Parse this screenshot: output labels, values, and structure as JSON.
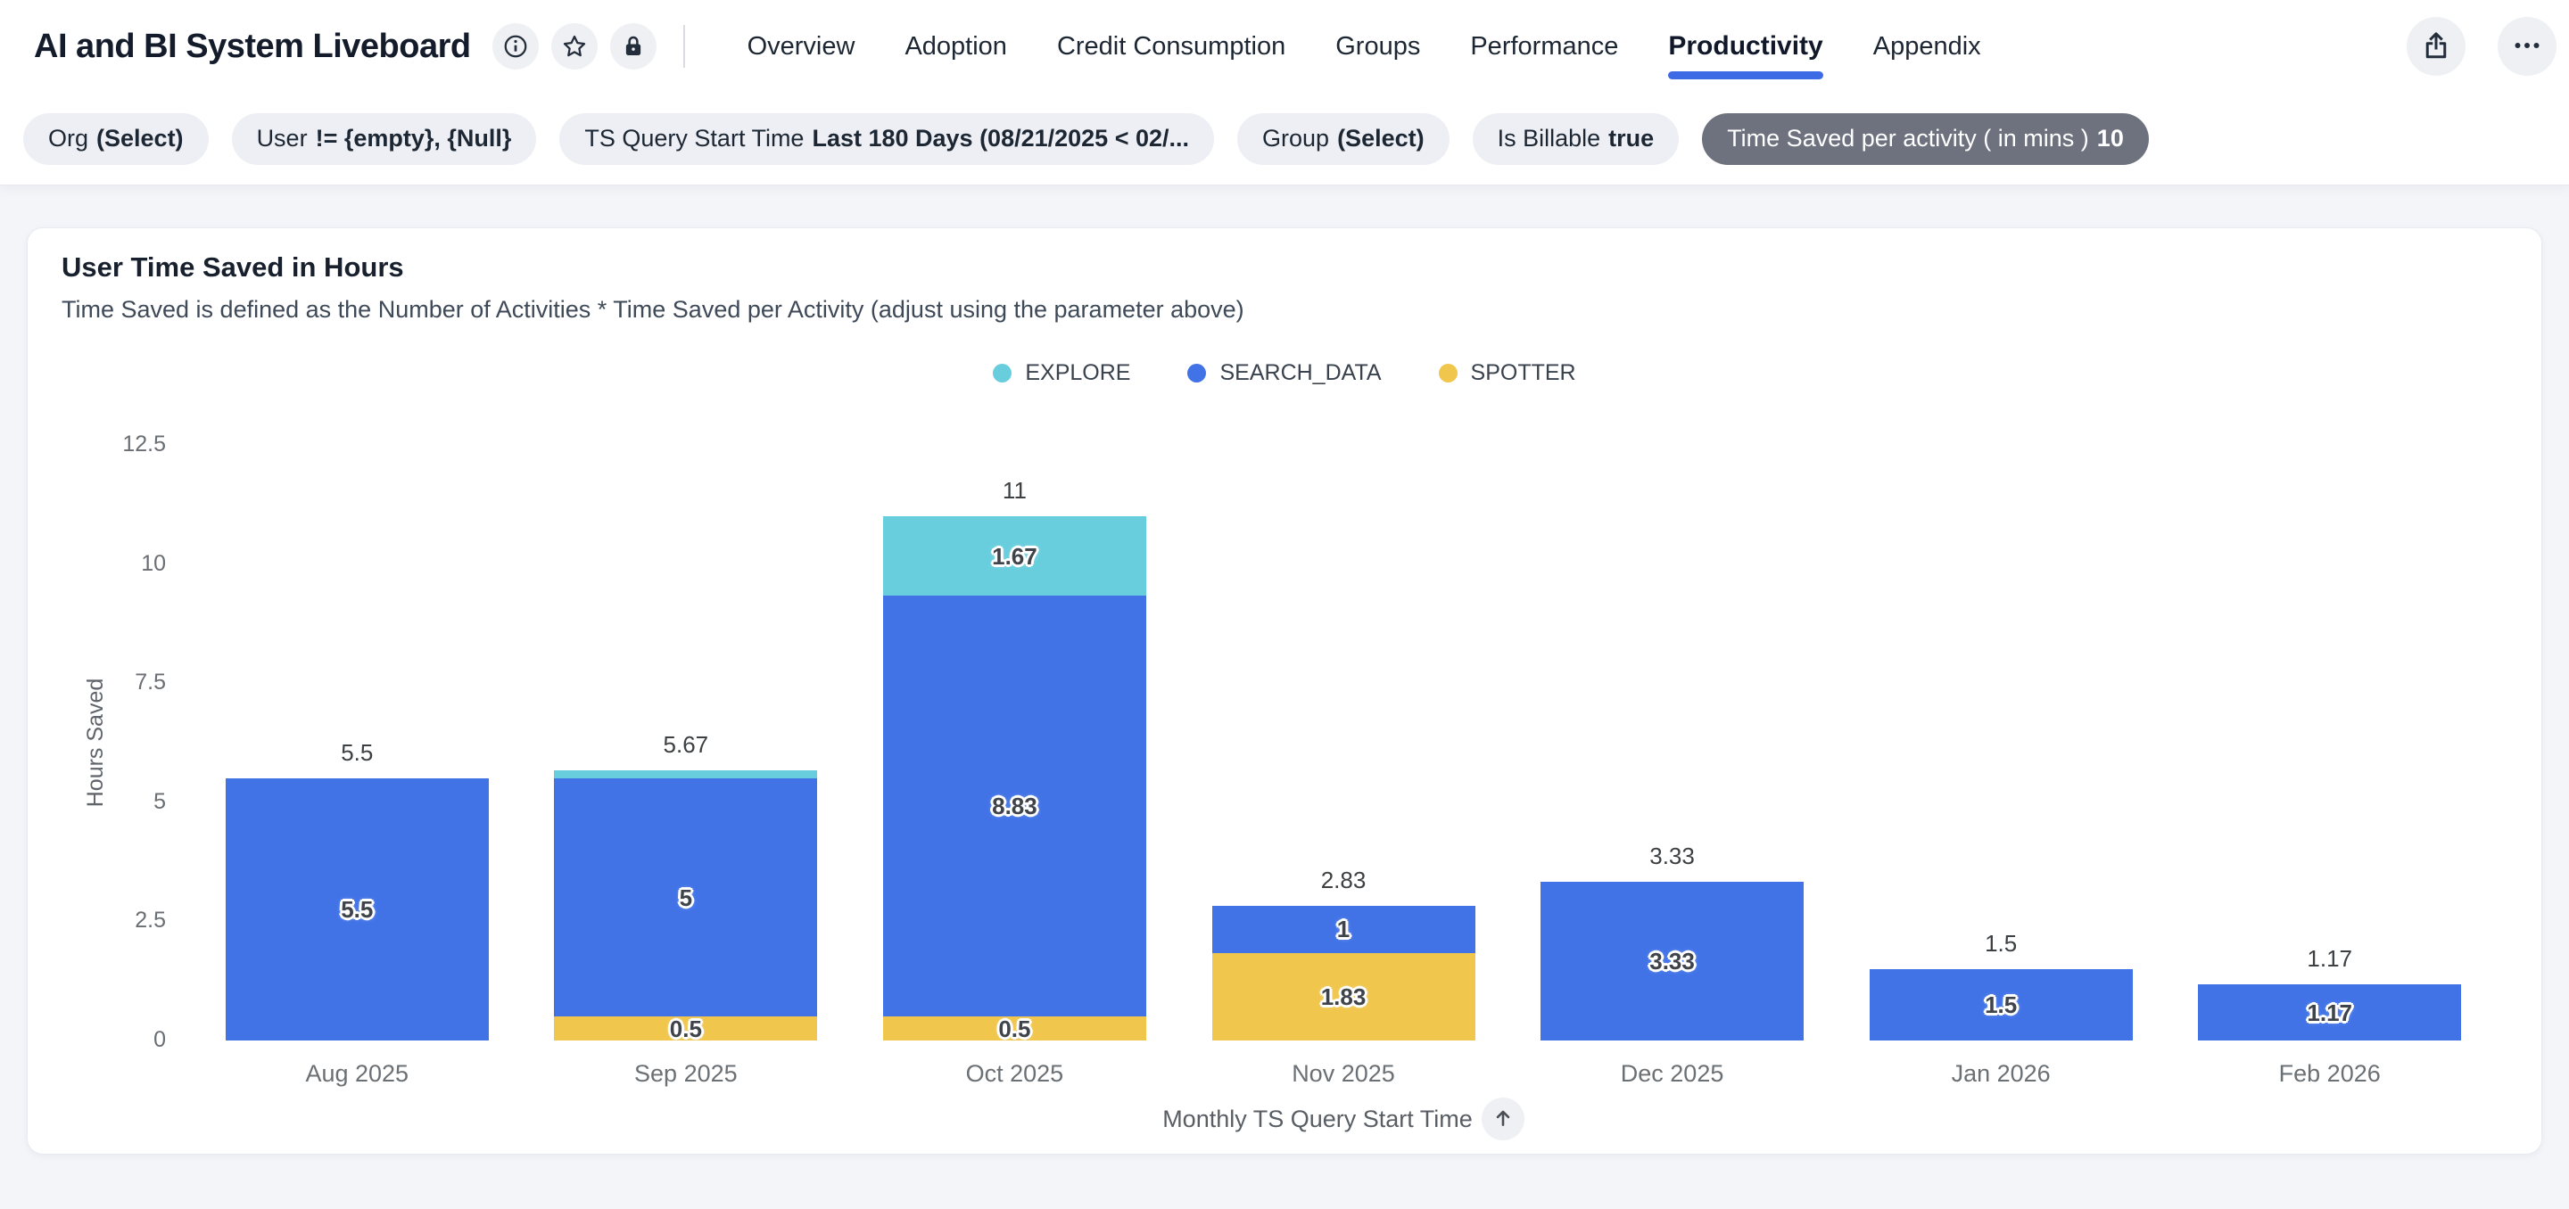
{
  "header": {
    "title": "AI and BI System Liveboard",
    "tabs": [
      {
        "label": "Overview",
        "active": false
      },
      {
        "label": "Adoption",
        "active": false
      },
      {
        "label": "Credit Consumption",
        "active": false
      },
      {
        "label": "Groups",
        "active": false
      },
      {
        "label": "Performance",
        "active": false
      },
      {
        "label": "Productivity",
        "active": true
      },
      {
        "label": "Appendix",
        "active": false
      }
    ]
  },
  "filters": [
    {
      "label": "Org",
      "value": "(Select)",
      "selected": false
    },
    {
      "label": "User",
      "value": "!= {empty}, {Null}",
      "selected": false
    },
    {
      "label": "TS Query Start Time",
      "value": "Last 180 Days (08/21/2025 < 02/...",
      "selected": false
    },
    {
      "label": "Group",
      "value": "(Select)",
      "selected": false
    },
    {
      "label": "Is Billable",
      "value": "true",
      "selected": false
    },
    {
      "label": "Time Saved per activity ( in mins )",
      "value": "10",
      "selected": true
    }
  ],
  "card": {
    "title": "User Time Saved in Hours",
    "subtitle": "Time Saved is defined as the Number of Activities * Time Saved per Activity (adjust using the parameter above)"
  },
  "chart_data": {
    "type": "bar",
    "stacked": true,
    "title": "User Time Saved in Hours",
    "categories": [
      "Aug 2025",
      "Sep 2025",
      "Oct 2025",
      "Nov 2025",
      "Dec 2025",
      "Jan 2026",
      "Feb 2026"
    ],
    "series": [
      {
        "name": "EXPLORE",
        "color": "#68cedd",
        "values": [
          0,
          0.17,
          1.67,
          0,
          0,
          0,
          0
        ],
        "labels": [
          "",
          "",
          "1.67",
          "",
          "",
          "",
          ""
        ]
      },
      {
        "name": "SEARCH_DATA",
        "color": "#4173e7",
        "values": [
          5.5,
          5,
          8.83,
          1,
          3.33,
          1.5,
          1.17
        ],
        "labels": [
          "5.5",
          "5",
          "8.83",
          "1",
          "3.33",
          "1.5",
          "1.17"
        ]
      },
      {
        "name": "SPOTTER",
        "color": "#f0c64d",
        "values": [
          0,
          0.5,
          0.5,
          1.83,
          0,
          0,
          0
        ],
        "labels": [
          "",
          "0.5",
          "0.5",
          "1.83",
          "",
          "",
          ""
        ]
      }
    ],
    "stack_order": [
      "SPOTTER",
      "SEARCH_DATA",
      "EXPLORE"
    ],
    "totals": [
      "5.5",
      "5.67",
      "11",
      "2.83",
      "3.33",
      "1.5",
      "1.17"
    ],
    "ylabel": "Hours Saved",
    "xlabel": "Monthly TS Query Start Time",
    "ylim": [
      0,
      12.5
    ],
    "yticks": [
      0,
      2.5,
      5,
      7.5,
      10,
      12.5
    ],
    "grid": false,
    "legend_position": "top",
    "accent_color": "#3d6be5"
  }
}
